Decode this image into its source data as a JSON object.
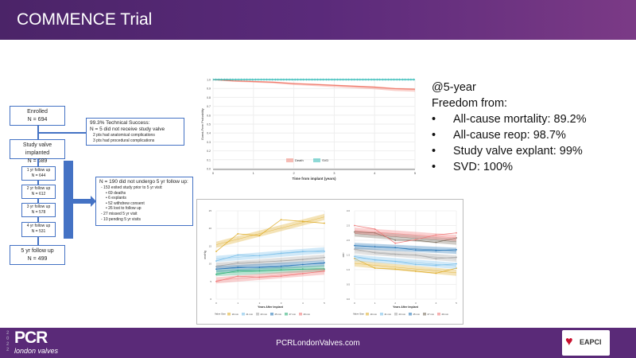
{
  "title": "COMMENCE Trial",
  "flow": {
    "enrolled": {
      "label": "Enrolled",
      "n": "N = 694"
    },
    "tech": {
      "head": "99.3% Technical Success:",
      "line": "N = 5 did not receive study valve",
      "bullets": [
        "2 pts had anatomical complications",
        "3 pts had procedural complications"
      ]
    },
    "implanted": {
      "label": "Study valve implanted",
      "n": "N = 689"
    },
    "followups": [
      {
        "label": "1 yr follow up",
        "n": "N = 644"
      },
      {
        "label": "2 yr follow up",
        "n": "N = 612"
      },
      {
        "label": "3 yr follow up",
        "n": "N = 578"
      },
      {
        "label": "4 yr follow up",
        "n": "N = 531"
      }
    ],
    "final": {
      "label": "5 yr follow up",
      "n": "N = 499"
    },
    "lost": {
      "head": "N = 190 did not undergo 5 yr follow up:",
      "lines": [
        "- 153 exited study prior to 5 yr visit:",
        "• 69 deaths",
        "• 6 explants",
        "• 52 withdrew consent",
        "• 26 lost to follow up",
        "- 27 missed 5 yr visit",
        "- 10 pending 5 yr visits"
      ]
    }
  },
  "stats": {
    "heading": "@5-year",
    "sub": "Freedom from:",
    "items": [
      "All-cause mortality: 89.2%",
      "All-cause reop: 98.7%",
      "Study valve explant: 99%",
      "SVD: 100%"
    ]
  },
  "footer": {
    "url": "PCRLondonValves.com",
    "logo_year": "2022",
    "logo_pcr": "PCR",
    "logo_sub": "london valves",
    "eapci": "EAPCI"
  },
  "chart_data": [
    {
      "type": "line",
      "title": "",
      "xlabel": "Time from implant (years)",
      "ylabel": "Event-Free Probability",
      "xlim": [
        0,
        5
      ],
      "ylim": [
        0,
        1
      ],
      "xticks": [
        0,
        1,
        2,
        3,
        4,
        5
      ],
      "yticks": [
        "0.0",
        "0.1",
        "0.2",
        "0.3",
        "0.4",
        "0.5",
        "0.6",
        "0.7",
        "0.8",
        "0.9",
        "1.0"
      ],
      "legend": "bottom-center",
      "series": [
        {
          "name": "Death",
          "color": "#f07c6e",
          "x": [
            0,
            0.5,
            1,
            1.5,
            2,
            2.5,
            3,
            3.5,
            4,
            4.5,
            5
          ],
          "y": [
            1.0,
            0.985,
            0.978,
            0.97,
            0.955,
            0.945,
            0.935,
            0.925,
            0.915,
            0.898,
            0.892
          ]
        },
        {
          "name": "SVD",
          "color": "#1fb5b0",
          "x": [
            0,
            5
          ],
          "y": [
            1.0,
            1.0
          ]
        }
      ]
    },
    {
      "type": "line",
      "xlabel": "Years After Implant",
      "ylabel": "mmHg",
      "xlim": [
        0,
        5
      ],
      "ylim": [
        0,
        25
      ],
      "xticks": [
        0,
        1,
        2,
        3,
        4,
        5
      ],
      "yticks": [
        0,
        5,
        10,
        15,
        20,
        25
      ],
      "legend_title": "Valve Size",
      "legend": "bottom",
      "series": [
        {
          "name": "19 mm",
          "color": "#e0b030",
          "y": [
            13.5,
            18.5,
            18,
            22.5,
            22,
            21.5
          ]
        },
        {
          "name": "21 mm",
          "color": "#7cc0ea",
          "y": [
            10.8,
            12.5,
            12.3,
            13,
            13.5,
            13.5
          ]
        },
        {
          "name": "23 mm",
          "color": "#a8a8a8",
          "y": [
            9.2,
            10.3,
            10.5,
            10.8,
            11.2,
            11.8
          ]
        },
        {
          "name": "25 mm",
          "color": "#2a78b8",
          "y": [
            8.5,
            9,
            9,
            9.2,
            9.8,
            10.3
          ]
        },
        {
          "name": "27 mm",
          "color": "#30b07a",
          "y": [
            7,
            8,
            8,
            8.3,
            8.5,
            8.5
          ]
        },
        {
          "name": "29 mm",
          "color": "#f07c7c",
          "y": [
            5,
            6.5,
            6.2,
            6.5,
            7.2,
            8
          ]
        }
      ]
    },
    {
      "type": "line",
      "xlabel": "Years After Implant",
      "ylabel": "cm²",
      "xlim": [
        0,
        5
      ],
      "ylim": [
        0,
        3
      ],
      "xticks": [
        0,
        1,
        2,
        3,
        4,
        5
      ],
      "yticks": [
        "0.0",
        "0.5",
        "1.0",
        "1.5",
        "2.0",
        "2.5",
        "3.0"
      ],
      "legend_title": "Valve Size",
      "legend": "bottom",
      "series": [
        {
          "name": "19 mm",
          "color": "#e0b030",
          "y": [
            1.38,
            1.05,
            1.02,
            0.95,
            0.88,
            1.05
          ]
        },
        {
          "name": "21 mm",
          "color": "#7cc0ea",
          "y": [
            1.45,
            1.33,
            1.28,
            1.18,
            1.15,
            1.2
          ]
        },
        {
          "name": "23 mm",
          "color": "#a8a8a8",
          "y": [
            1.7,
            1.57,
            1.52,
            1.5,
            1.38,
            1.42
          ]
        },
        {
          "name": "25 mm",
          "color": "#2a78b8",
          "y": [
            1.82,
            1.78,
            1.75,
            1.67,
            1.65,
            1.68
          ]
        },
        {
          "name": "27 mm",
          "color": "#7a7060",
          "y": [
            2.28,
            2.25,
            2.0,
            2.0,
            1.93,
            2.08
          ]
        },
        {
          "name": "29 mm",
          "color": "#f07c7c",
          "y": [
            2.5,
            2.38,
            1.9,
            2.02,
            2.18,
            2.25
          ]
        }
      ]
    }
  ]
}
